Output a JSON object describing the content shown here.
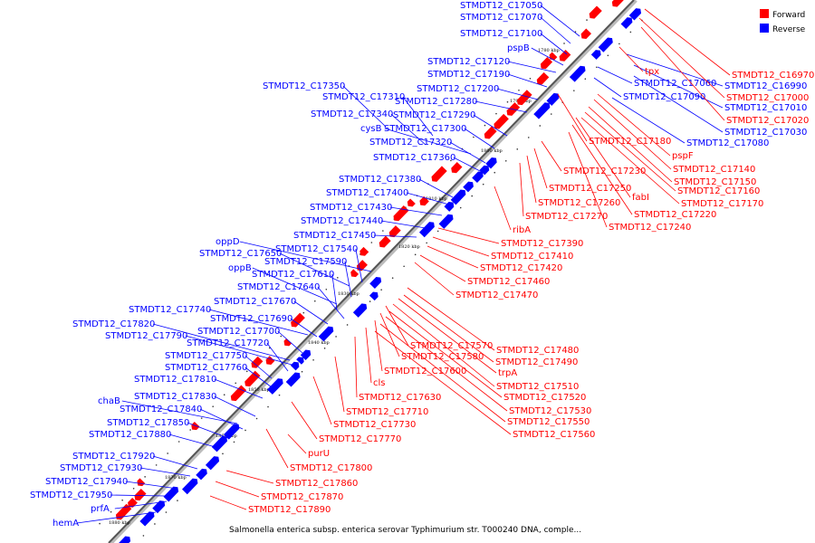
{
  "colors": {
    "forward": "#ff0000",
    "reverse": "#0000ff",
    "axis": "#888888"
  },
  "caption": "Salmonella enterica subsp. enterica serovar Typhimurium str. T000240 DNA, comple...",
  "legend": [
    {
      "label": "Forward",
      "color": "#ff0000"
    },
    {
      "label": "Reverse",
      "color": "#0000ff"
    }
  ],
  "axis_ticks": [
    "1780 kbp",
    "1790 kbp",
    "1800 kbp",
    "1810 kbp",
    "1820 kbp",
    "1830 kbp",
    "1840 kbp",
    "1850 kbp",
    "1860 kbp",
    "1870 kbp",
    "1880 kbp"
  ],
  "reverse_genes": [
    "STMDT12_C17050",
    "STMDT12_C17070",
    "STMDT12_C17100",
    "pspB",
    "STMDT12_C17120",
    "STMDT12_C17190",
    "STMDT12_C17200",
    "STMDT12_C17350",
    "STMDT12_C17310",
    "STMDT12_C17280",
    "STMDT12_C17340",
    "STMDT12_C17290",
    "cysB",
    "STMDT12_C17300",
    "STMDT12_C17320",
    "STMDT12_C17360",
    "STMDT12_C17380",
    "STMDT12_C17400",
    "STMDT12_C17430",
    "STMDT12_C17440",
    "STMDT12_C17450",
    "oppD",
    "STMDT12_C17540",
    "STMDT12_C17650",
    "STMDT12_C17590",
    "oppB",
    "STMDT12_C17610",
    "STMDT12_C17640",
    "STMDT12_C17670",
    "STMDT12_C17740",
    "STMDT12_C17690",
    "STMDT12_C17820",
    "STMDT12_C17700",
    "STMDT12_C17790",
    "STMDT12_C17720",
    "STMDT12_C17750",
    "STMDT12_C17760",
    "STMDT12_C17810",
    "chaB",
    "STMDT12_C17830",
    "STMDT12_C17840",
    "STMDT12_C17850",
    "STMDT12_C17880",
    "STMDT12_C17920",
    "STMDT12_C17930",
    "STMDT12_C17940",
    "prfA",
    "STMDT12_C17950",
    "hemA",
    "STMDT12_C16990",
    "STMDT12_C17060",
    "STMDT12_C17090",
    "STMDT12_C17010",
    "STMDT12_C17030",
    "STMDT12_C17080"
  ],
  "forward_genes": [
    "STMDT12_C16970",
    "tpx",
    "STMDT12_C17000",
    "STMDT12_C17020",
    "STMDT12_C17180",
    "pspF",
    "STMDT12_C17140",
    "STMDT12_C17150",
    "STMDT12_C17160",
    "STMDT12_C17170",
    "STMDT12_C17230",
    "STMDT12_C17250",
    "fabI",
    "STMDT12_C17260",
    "STMDT12_C17270",
    "STMDT12_C17220",
    "STMDT12_C17240",
    "ribA",
    "STMDT12_C17390",
    "STMDT12_C17410",
    "STMDT12_C17420",
    "STMDT12_C17460",
    "STMDT12_C17470",
    "STMDT12_C17570",
    "STMDT12_C17480",
    "STMDT12_C17580",
    "STMDT12_C17490",
    "trpA",
    "STMDT12_C17600",
    "cls",
    "STMDT12_C17510",
    "STMDT12_C17520",
    "STMDT12_C17630",
    "STMDT12_C17530",
    "STMDT12_C17710",
    "STMDT12_C17550",
    "STMDT12_C17730",
    "STMDT12_C17560",
    "STMDT12_C17770",
    "purU",
    "STMDT12_C17800",
    "STMDT12_C17860",
    "STMDT12_C17870",
    "STMDT12_C17890"
  ]
}
